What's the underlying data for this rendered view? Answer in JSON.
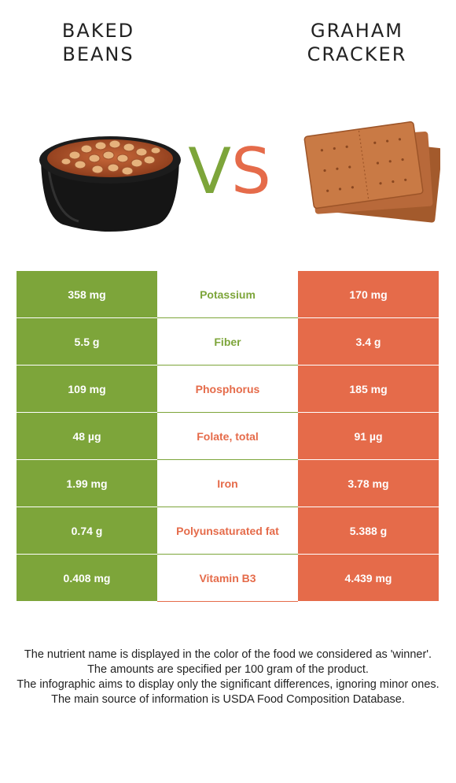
{
  "foods": {
    "left": {
      "title_lines": [
        "BAKED",
        "BEANS"
      ],
      "color": "#7da53a"
    },
    "right": {
      "title_lines": [
        "GRAHAM",
        "CRACKER"
      ],
      "color": "#e56b4a"
    }
  },
  "vs": {
    "v": "V",
    "s": "S"
  },
  "nutrients": [
    {
      "name": "Potassium",
      "left": "358 mg",
      "right": "170 mg",
      "winner": "left"
    },
    {
      "name": "Fiber",
      "left": "5.5 g",
      "right": "3.4 g",
      "winner": "left"
    },
    {
      "name": "Phosphorus",
      "left": "109 mg",
      "right": "185 mg",
      "winner": "right"
    },
    {
      "name": "Folate, total",
      "left": "48 µg",
      "right": "91 µg",
      "winner": "right"
    },
    {
      "name": "Iron",
      "left": "1.99 mg",
      "right": "3.78 mg",
      "winner": "right"
    },
    {
      "name": "Polyunsaturated fat",
      "left": "0.74 g",
      "right": "5.388 g",
      "winner": "right"
    },
    {
      "name": "Vitamin B3",
      "left": "0.408 mg",
      "right": "4.439 mg",
      "winner": "right"
    }
  ],
  "footer": {
    "lines": [
      "The nutrient name is displayed in the color of the food we considered as 'winner'.",
      "The amounts are specified per 100 gram of the product.",
      "The infographic aims to display only the significant differences, ignoring minor ones.",
      "The main source of information is USDA Food Composition Database."
    ]
  }
}
